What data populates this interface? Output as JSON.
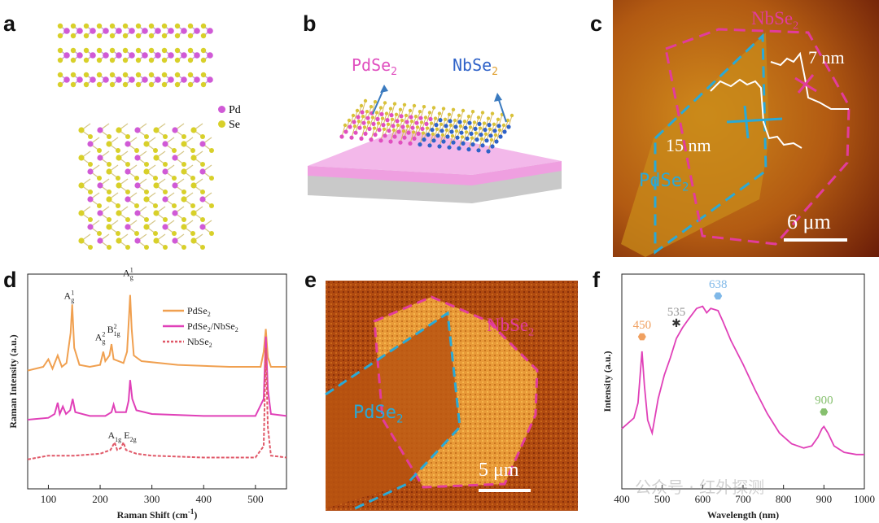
{
  "panels": {
    "a": {
      "label": "a",
      "legend": [
        {
          "symbol": "Pd",
          "color": "#d05ad6"
        },
        {
          "symbol": "Se",
          "color": "#d8d02a"
        }
      ]
    },
    "b": {
      "label": "b",
      "material1": "PdSe",
      "sub1": "2",
      "material2": "NbSe",
      "sub2": "2",
      "colors": {
        "pd": "#e04fbf",
        "nb": "#2f62c8",
        "substrate": "#ef9fe0"
      }
    },
    "c": {
      "label": "c",
      "nbse2": "NbSe",
      "nbse2_sub": "2",
      "pdse2": "PdSe",
      "pdse2_sub": "2",
      "height1": "7 nm",
      "height2": "15 nm",
      "scale": "6 μm",
      "colors": {
        "pdse2_outline": "#2aa9d6",
        "nbse2_outline": "#e23c9c"
      }
    },
    "e": {
      "label": "e",
      "nbse2": "NbSe",
      "nbse2_sub": "2",
      "pdse2": "PdSe",
      "pdse2_sub": "2",
      "scale": "5 μm"
    }
  },
  "watermark": "公众号 · 红外探测",
  "chart_data": [
    {
      "panel": "d",
      "type": "line",
      "xlabel": "Raman Shift (cm",
      "xlabel_sup": "-1",
      "xlabel_end": ")",
      "ylabel": "Raman Intensity (a.u.)",
      "xlim": [
        60,
        560
      ],
      "xticks": [
        100,
        200,
        300,
        400,
        500
      ],
      "legend_placement": "top-right",
      "series": [
        {
          "name": "PdSe",
          "sub": "2",
          "color": "#f0a050",
          "dash": false,
          "points": [
            [
              60,
              0.6
            ],
            [
              90,
              0.62
            ],
            [
              100,
              0.66
            ],
            [
              108,
              0.61
            ],
            [
              118,
              0.68
            ],
            [
              126,
              0.62
            ],
            [
              135,
              0.64
            ],
            [
              143,
              0.8
            ],
            [
              146,
              0.95
            ],
            [
              150,
              0.72
            ],
            [
              160,
              0.63
            ],
            [
              180,
              0.62
            ],
            [
              200,
              0.63
            ],
            [
              206,
              0.7
            ],
            [
              210,
              0.65
            ],
            [
              218,
              0.68
            ],
            [
              222,
              0.74
            ],
            [
              226,
              0.66
            ],
            [
              245,
              0.64
            ],
            [
              252,
              0.7
            ],
            [
              256,
              0.9
            ],
            [
              258,
              1.0
            ],
            [
              261,
              0.82
            ],
            [
              265,
              0.68
            ],
            [
              280,
              0.65
            ],
            [
              350,
              0.63
            ],
            [
              450,
              0.62
            ],
            [
              510,
              0.62
            ],
            [
              516,
              0.7
            ],
            [
              520,
              0.82
            ],
            [
              524,
              0.67
            ],
            [
              530,
              0.62
            ],
            [
              560,
              0.62
            ]
          ]
        },
        {
          "name": "PdSe",
          "sub": "2",
          "name_tail": "/NbSe",
          "sub_tail": "2",
          "color": "#e040b8",
          "dash": false,
          "points": [
            [
              60,
              0.34
            ],
            [
              100,
              0.35
            ],
            [
              112,
              0.37
            ],
            [
              118,
              0.43
            ],
            [
              122,
              0.37
            ],
            [
              128,
              0.41
            ],
            [
              134,
              0.37
            ],
            [
              142,
              0.39
            ],
            [
              147,
              0.45
            ],
            [
              152,
              0.38
            ],
            [
              180,
              0.36
            ],
            [
              210,
              0.36
            ],
            [
              222,
              0.38
            ],
            [
              226,
              0.42
            ],
            [
              230,
              0.38
            ],
            [
              250,
              0.38
            ],
            [
              255,
              0.44
            ],
            [
              258,
              0.55
            ],
            [
              262,
              0.45
            ],
            [
              270,
              0.39
            ],
            [
              300,
              0.37
            ],
            [
              400,
              0.36
            ],
            [
              500,
              0.36
            ],
            [
              516,
              0.45
            ],
            [
              520,
              0.78
            ],
            [
              524,
              0.5
            ],
            [
              530,
              0.37
            ],
            [
              560,
              0.36
            ]
          ]
        },
        {
          "name": "NbSe",
          "sub": "2",
          "color": "#e05868",
          "dash": true,
          "points": [
            [
              60,
              0.13
            ],
            [
              100,
              0.15
            ],
            [
              150,
              0.15
            ],
            [
              200,
              0.16
            ],
            [
              220,
              0.18
            ],
            [
              228,
              0.22
            ],
            [
              233,
              0.18
            ],
            [
              240,
              0.19
            ],
            [
              245,
              0.22
            ],
            [
              250,
              0.18
            ],
            [
              270,
              0.16
            ],
            [
              300,
              0.15
            ],
            [
              400,
              0.14
            ],
            [
              500,
              0.14
            ],
            [
              516,
              0.2
            ],
            [
              520,
              0.72
            ],
            [
              524,
              0.3
            ],
            [
              530,
              0.15
            ],
            [
              560,
              0.14
            ]
          ]
        }
      ],
      "annotations": [
        {
          "text": "A",
          "sup": "1",
          "sub": "g",
          "x": 140,
          "y": 0.98
        },
        {
          "text": "A",
          "sup": "2",
          "sub": "g",
          "x": 200,
          "y": 0.76
        },
        {
          "text": "B",
          "sup": "2",
          "sub": "1g",
          "x": 226,
          "y": 0.8
        },
        {
          "text": "A",
          "sup": "1",
          "sub": "g",
          "x": 254,
          "y": 1.1
        },
        {
          "text": "A",
          "sup": "",
          "sub": "1g",
          "x": 228,
          "y": 0.24
        },
        {
          "text": "E",
          "sup": "",
          "sub": "2g",
          "x": 258,
          "y": 0.24
        }
      ]
    },
    {
      "panel": "f",
      "type": "line",
      "xlabel": "Wavelength (nm)",
      "ylabel": "Intensity (a.u.)",
      "xlim": [
        400,
        1000
      ],
      "xticks": [
        400,
        500,
        600,
        700,
        800,
        900,
        1000
      ],
      "color": "#e040b8",
      "points": [
        [
          400,
          0.28
        ],
        [
          430,
          0.33
        ],
        [
          440,
          0.4
        ],
        [
          450,
          0.64
        ],
        [
          456,
          0.48
        ],
        [
          464,
          0.32
        ],
        [
          475,
          0.26
        ],
        [
          490,
          0.42
        ],
        [
          505,
          0.53
        ],
        [
          520,
          0.61
        ],
        [
          535,
          0.7
        ],
        [
          550,
          0.75
        ],
        [
          565,
          0.79
        ],
        [
          585,
          0.84
        ],
        [
          600,
          0.85
        ],
        [
          610,
          0.82
        ],
        [
          620,
          0.84
        ],
        [
          638,
          0.83
        ],
        [
          650,
          0.78
        ],
        [
          670,
          0.69
        ],
        [
          700,
          0.58
        ],
        [
          730,
          0.46
        ],
        [
          760,
          0.35
        ],
        [
          790,
          0.26
        ],
        [
          820,
          0.21
        ],
        [
          850,
          0.19
        ],
        [
          870,
          0.2
        ],
        [
          885,
          0.24
        ],
        [
          895,
          0.28
        ],
        [
          900,
          0.29
        ],
        [
          910,
          0.26
        ],
        [
          925,
          0.2
        ],
        [
          950,
          0.17
        ],
        [
          980,
          0.16
        ],
        [
          1000,
          0.16
        ]
      ],
      "markers": [
        {
          "label": "450",
          "x": 450,
          "color": "#f0a060",
          "shape": "hexagon"
        },
        {
          "label": "535",
          "x": 535,
          "color": "#999999",
          "shape": "star"
        },
        {
          "label": "638",
          "x": 638,
          "color": "#7fb8e8",
          "shape": "hexagon"
        },
        {
          "label": "900",
          "x": 900,
          "color": "#86c06e",
          "shape": "hexagon"
        }
      ]
    }
  ]
}
